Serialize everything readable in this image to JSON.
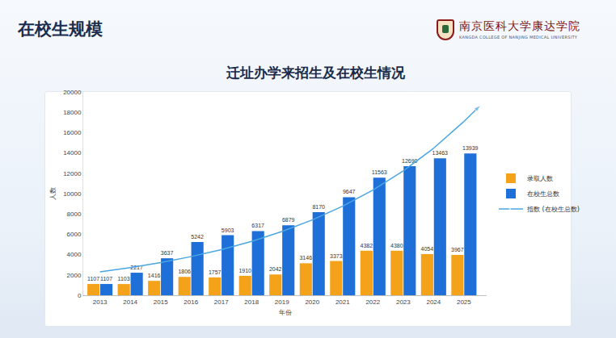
{
  "header": {
    "title": "在校生规模"
  },
  "logo": {
    "name": "南京医科大学康达学院",
    "subtitle": "KANGDA COLLEGE OF NANJING MEDICAL UNIVERSITY"
  },
  "chart_data": {
    "type": "bar",
    "title": "迁址办学来招生及在校生情况",
    "x_label": "年份",
    "y_label": "人数",
    "x": [
      2013,
      2014,
      2015,
      2016,
      2017,
      2018,
      2019,
      2020,
      2021,
      2022,
      2023,
      2024,
      2025
    ],
    "series": [
      {
        "name": "录取人数",
        "type": "bar",
        "color": "#f5a21b",
        "values": [
          1107,
          1103,
          1416,
          1806,
          1757,
          1910,
          2042,
          3146,
          3373,
          4382,
          4380,
          4054,
          3967
        ]
      },
      {
        "name": "在校生总数",
        "type": "bar",
        "color": "#1f6fd8",
        "values": [
          1107,
          2217,
          3637,
          5242,
          5903,
          6317,
          6879,
          8170,
          9647,
          11563,
          12690,
          13463,
          13939
        ]
      },
      {
        "name": "指数 (在校生总数)",
        "type": "line",
        "color": "#4aa6e2",
        "line_style": "solid",
        "marker": "arrow",
        "x": [
          2013,
          2014,
          2015,
          2016,
          2017,
          2018,
          2019,
          2020,
          2021,
          2022,
          2023,
          2024,
          2025,
          2025.55
        ],
        "values": [
          2300,
          2720,
          3210,
          3800,
          4490,
          5300,
          6270,
          7410,
          8760,
          10350,
          12230,
          14460,
          17090,
          18700
        ]
      }
    ],
    "xlim": [
      2012.45,
      2025.75
    ],
    "xticks": [
      2013,
      2014,
      2015,
      2016,
      2017,
      2018,
      2019,
      2020,
      2021,
      2022,
      2023,
      2024,
      2025
    ],
    "ylim": [
      0,
      20000
    ],
    "yticks": [
      0,
      2000,
      4000,
      6000,
      8000,
      10000,
      12000,
      14000,
      16000,
      18000,
      20000
    ],
    "grid": false,
    "data_labels": true,
    "legend": "right"
  }
}
